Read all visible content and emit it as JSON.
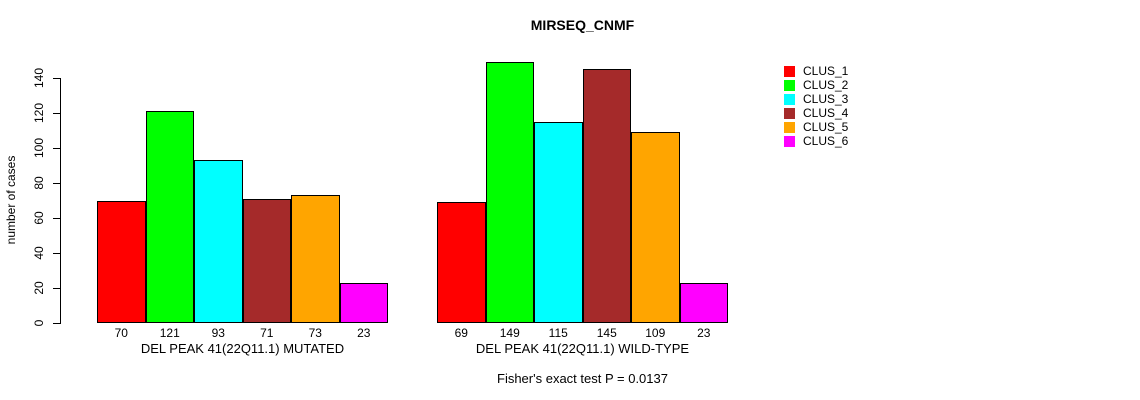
{
  "chart_data": {
    "type": "bar",
    "title": "MIRSEQ_CNMF",
    "ylabel": "number of cases",
    "xlabel": "",
    "ylim": [
      0,
      140
    ],
    "yticks": [
      0,
      20,
      40,
      60,
      80,
      100,
      120,
      140
    ],
    "grid": false,
    "legend_position": "right",
    "categories": [
      "DEL PEAK 41(22Q11.1) MUTATED",
      "DEL PEAK 41(22Q11.1) WILD-TYPE"
    ],
    "series": [
      {
        "name": "CLUS_1",
        "color": "#FF0000",
        "values": [
          70,
          69
        ]
      },
      {
        "name": "CLUS_2",
        "color": "#00FF00",
        "values": [
          121,
          149
        ]
      },
      {
        "name": "CLUS_3",
        "color": "#00FFFF",
        "values": [
          93,
          115
        ]
      },
      {
        "name": "CLUS_4",
        "color": "#A52A2A",
        "values": [
          71,
          145
        ]
      },
      {
        "name": "CLUS_5",
        "color": "#FFA500",
        "values": [
          73,
          109
        ]
      },
      {
        "name": "CLUS_6",
        "color": "#FF00FF",
        "values": [
          23,
          23
        ]
      }
    ],
    "bar_value_labels": [
      [
        "70",
        "121",
        "93",
        "71",
        "73",
        "23"
      ],
      [
        "69",
        "149",
        "115",
        "145",
        "109",
        "23"
      ]
    ],
    "footnote": "Fisher's exact test P = 0.0137"
  },
  "colors": {
    "background": "#ffffff",
    "axis": "#000000",
    "text": "#000000"
  }
}
